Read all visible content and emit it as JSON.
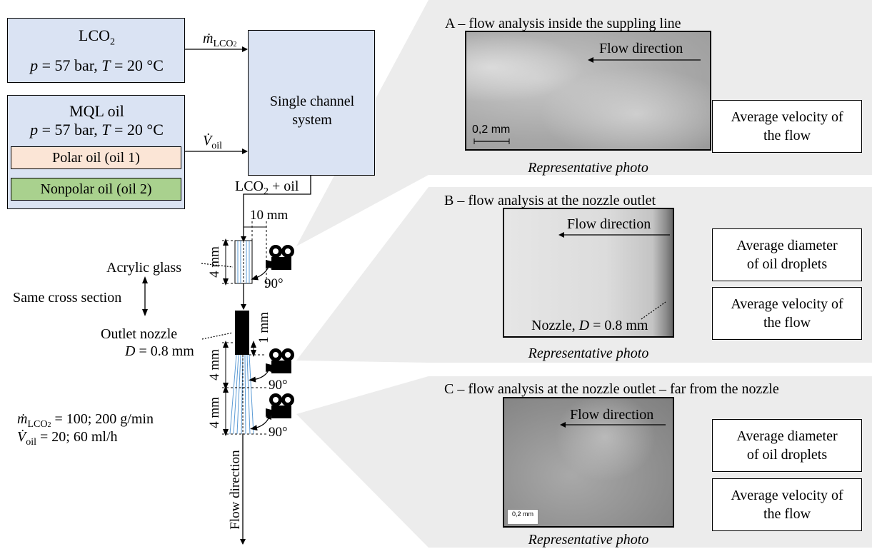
{
  "left": {
    "lco2_box": {
      "title_main": "LCO",
      "title_sub": "2",
      "cond_p": "p",
      "cond_rest": " = 57 bar, ",
      "cond_t": "T",
      "cond_end": " = 20 °C"
    },
    "mql_box": {
      "title": "MQL oil",
      "cond_p": "p",
      "cond_rest": " = 57 bar, ",
      "cond_t": "T",
      "cond_end": " = 20 °C",
      "polar": "Polar oil (oil 1)",
      "nonpolar": "Nonpolar oil (oil 2)"
    },
    "single_channel": {
      "line1": "Single channel",
      "line2": "system"
    },
    "m_dot_label": {
      "sym": "ṁ",
      "sub": "LCO",
      "sub2": "2"
    },
    "v_dot_label": {
      "sym": "V̇",
      "sub": "oil"
    },
    "mix_label": {
      "a": "LCO",
      "b": "2",
      "c": " + oil"
    },
    "dim_10mm": "10 mm",
    "dim_4mm_a": "4 mm",
    "dim_1mm": "1 mm",
    "dim_4mm_b": "4 mm",
    "dim_4mm_c": "4 mm",
    "acrylic": "Acrylic glass",
    "same_cross": "Same cross section",
    "outlet_nozzle": "Outlet nozzle",
    "outlet_d": {
      "sym": "D",
      "rest": " = 0.8 mm"
    },
    "angle_1": "90°",
    "angle_2": "90°",
    "angle_3": "90°",
    "params": {
      "m_sym": "ṁ",
      "m_sub": "LCO",
      "m_sub2": "2",
      "m_val": " = 100; 200 g/min",
      "v_sym": "V̇",
      "v_sub": "oil",
      "v_val": " = 20; 60 ml/h"
    },
    "flow_direction_vertical": "Flow direction"
  },
  "panels": {
    "A": {
      "title": "A – flow analysis inside the suppling line",
      "flow": "Flow direction",
      "scale": "0,2 mm",
      "caption": "Representative photo",
      "notes": [
        "Average velocity of the flow"
      ]
    },
    "B": {
      "title": "B – flow analysis at the nozzle outlet",
      "flow": "Flow direction",
      "nozzle_sym": "D",
      "nozzle_pre": "Nozzle, ",
      "nozzle_post": " = 0.8 mm",
      "caption": "Representative photo",
      "notes": [
        "Average diameter of oil droplets",
        "Average velocity of the flow"
      ]
    },
    "C": {
      "title": "C – flow analysis at the nozzle outlet – far from the nozzle",
      "flow": "Flow direction",
      "scale": "0,2 mm",
      "caption": "Representative photo",
      "notes": [
        "Average diameter of oil droplets",
        "Average velocity of the flow"
      ]
    }
  },
  "colors": {
    "box_blue": "#dae3f3",
    "polar": "#fbe5d6",
    "nonpolar": "#a9d18e",
    "panel_bg": "#ececec",
    "channel_line": "#5b9bd5"
  }
}
